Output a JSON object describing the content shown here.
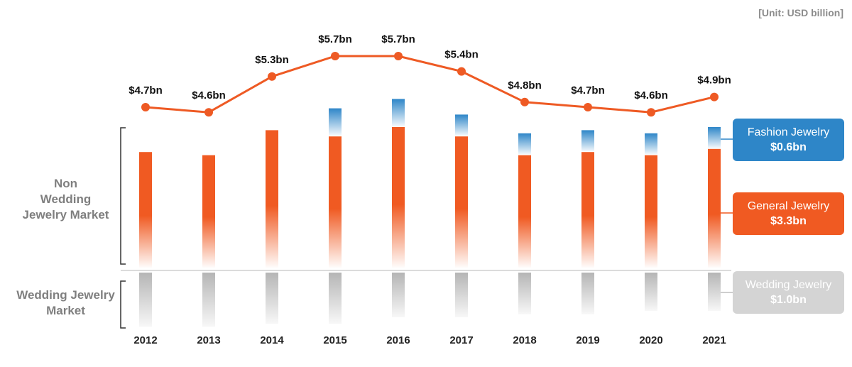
{
  "unit_label": "[Unit: USD billion]",
  "segments": {
    "non_wedding": [
      "Non",
      "Wedding",
      "Jewelry Market"
    ],
    "wedding": [
      "Wedding Jewelry",
      "Market"
    ]
  },
  "legend": {
    "fashion": {
      "name": "Fashion Jewelry",
      "value": "$0.6bn"
    },
    "general": {
      "name": "General Jewelry",
      "value": "$3.3bn"
    },
    "wedding": {
      "name": "Wedding Jewelry",
      "value": "$1.0bn"
    }
  },
  "colors": {
    "fashion": "#2e86c8",
    "general": "#f05a22",
    "wedding": "#bdbdbd",
    "line": "#ee5a24"
  },
  "chart_data": {
    "type": "bar",
    "categories": [
      "2012",
      "2013",
      "2014",
      "2015",
      "2016",
      "2017",
      "2018",
      "2019",
      "2020",
      "2021"
    ],
    "line_series": {
      "values": [
        4.7,
        4.6,
        5.3,
        5.7,
        5.7,
        5.4,
        4.8,
        4.7,
        4.6,
        4.9
      ],
      "labels": [
        "$4.7bn",
        "$4.6bn",
        "$5.3bn",
        "$5.7bn",
        "$5.7bn",
        "$5.4bn",
        "$4.8bn",
        "$4.7bn",
        "$4.6bn",
        "$4.9bn"
      ]
    },
    "series": [
      {
        "name": "General Jewelry",
        "values": [
          3.7,
          3.6,
          4.4,
          4.2,
          4.5,
          4.2,
          3.6,
          3.7,
          3.6,
          3.8
        ]
      },
      {
        "name": "Fashion Jewelry",
        "values": [
          0,
          0,
          0,
          0.9,
          0.9,
          0.7,
          0.7,
          0.7,
          0.7,
          0.7
        ]
      },
      {
        "name": "Wedding Jewelry",
        "values": [
          1.7,
          1.7,
          1.6,
          1.6,
          1.4,
          1.4,
          1.3,
          1.3,
          1.2,
          1.2
        ]
      }
    ]
  }
}
